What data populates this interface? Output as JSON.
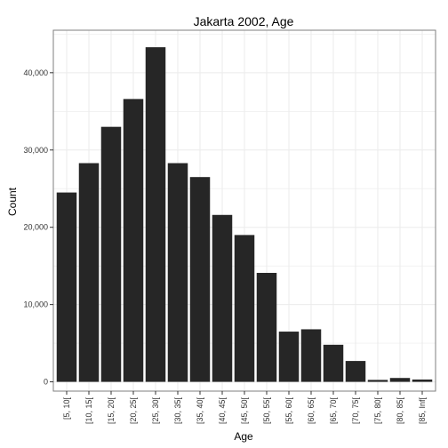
{
  "chart_data": {
    "type": "bar",
    "title": "Jakarta 2002, Age",
    "xlabel": "Age",
    "ylabel": "Count",
    "categories": [
      "[5, 10[",
      "[10, 15[",
      "[15, 20[",
      "[20, 25[",
      "[25, 30[",
      "[30, 35[",
      "[35, 40[",
      "[40, 45[",
      "[45, 50[",
      "[50, 55[",
      "[55, 60[",
      "[60, 65[",
      "[65, 70[",
      "[70, 75[",
      "[75, 80[",
      "[80, 85[",
      "[85, Inf["
    ],
    "values": [
      24500,
      28300,
      33000,
      36600,
      43300,
      28300,
      26500,
      21600,
      19000,
      14100,
      6500,
      6800,
      4800,
      2700,
      250,
      500,
      300
    ],
    "ylim": [
      -1200,
      45500
    ],
    "yticks": [
      0,
      10000,
      20000,
      30000,
      40000
    ],
    "ytick_labels": [
      "0",
      "10,000",
      "20,000",
      "30,000",
      "40,000"
    ],
    "grid": true,
    "bar_color": "#262626",
    "panel_border_color": "#7f7f7f",
    "grid_color": "#ebebeb"
  }
}
